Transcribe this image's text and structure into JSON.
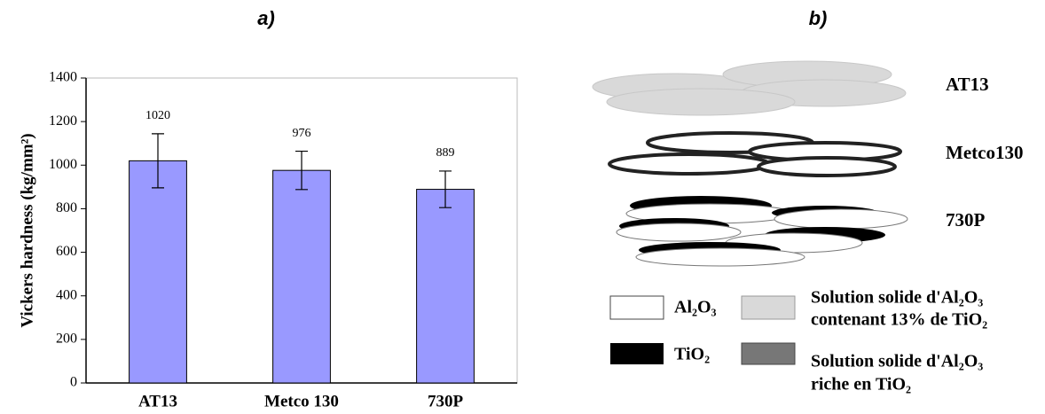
{
  "chart_data": {
    "type": "bar",
    "title": "a)",
    "y_label": "Vickers hardness (kg/mm²)",
    "categories": [
      "AT13",
      "Metco 130",
      "730P"
    ],
    "values": [
      1020,
      976,
      889
    ],
    "errors": [
      124,
      88,
      84
    ],
    "color": "#9999ff",
    "ylim": [
      0,
      1400
    ],
    "yticks": [
      0,
      200,
      400,
      600,
      800,
      1000,
      1200,
      1400
    ]
  },
  "diagram": {
    "title": "b)",
    "structures": [
      "AT13",
      "Metco130",
      "730P"
    ],
    "legend": [
      [
        "Al₂O₃"
      ],
      [
        "Solution solide d'Al₂O₃",
        "contenant 13% de TiO₂"
      ],
      [
        "TiO₂"
      ],
      [
        "Solution solide d'Al₂O₃",
        "riche en TiO₂"
      ]
    ]
  }
}
